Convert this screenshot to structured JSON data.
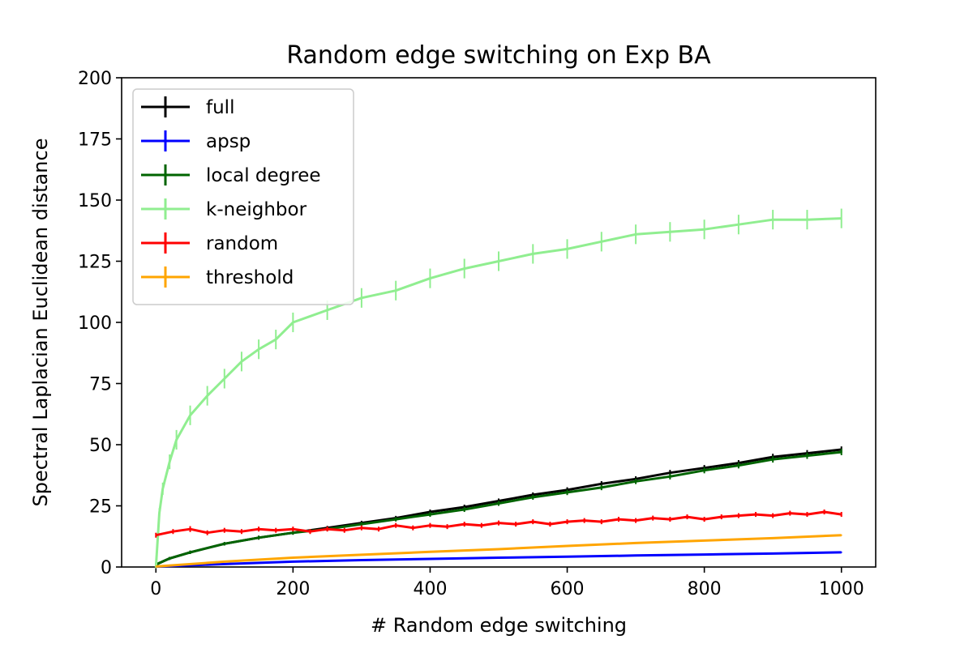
{
  "chart_data": {
    "type": "line",
    "title": "Random edge switching on Exp BA",
    "xlabel": "# Random edge switching",
    "ylabel": "Spectral Laplacian Euclidean distance",
    "xlim": [
      -50,
      1050
    ],
    "ylim": [
      0,
      200
    ],
    "xticks": [
      0,
      200,
      400,
      600,
      800,
      1000
    ],
    "yticks": [
      0,
      25,
      50,
      75,
      100,
      125,
      150,
      175,
      200
    ],
    "legend_position": "upper-left",
    "grid": false,
    "series": [
      {
        "name": "full",
        "color": "#000000",
        "x": [
          0,
          20,
          50,
          100,
          150,
          200,
          250,
          300,
          350,
          400,
          450,
          500,
          550,
          600,
          650,
          700,
          750,
          800,
          850,
          900,
          950,
          1000
        ],
        "y": [
          1,
          3.5,
          6,
          9.5,
          12,
          14,
          16,
          18,
          20,
          22.5,
          24.5,
          27,
          29.5,
          31.5,
          34,
          36,
          38.5,
          40.5,
          42.5,
          45,
          46.5,
          48
        ],
        "error": [
          0.6,
          0.6,
          0.7,
          0.7,
          0.8,
          0.8,
          0.8,
          0.9,
          0.9,
          1,
          1,
          1,
          1,
          1.1,
          1.1,
          1.1,
          1.2,
          1.2,
          1.2,
          1.3,
          1.3,
          1.3
        ]
      },
      {
        "name": "apsp",
        "color": "#0000ff",
        "x": [
          0,
          100,
          200,
          300,
          400,
          500,
          600,
          700,
          800,
          900,
          1000
        ],
        "y": [
          0.2,
          1.2,
          2.2,
          2.8,
          3.3,
          3.8,
          4.2,
          4.7,
          5.1,
          5.5,
          6
        ],
        "error": [
          0.1,
          0.2,
          0.2,
          0.2,
          0.2,
          0.2,
          0.2,
          0.2,
          0.2,
          0.2,
          0.2
        ]
      },
      {
        "name": "local degree",
        "color": "#006400",
        "x": [
          0,
          20,
          50,
          100,
          150,
          200,
          250,
          300,
          350,
          400,
          450,
          500,
          550,
          600,
          650,
          700,
          750,
          800,
          850,
          900,
          950,
          1000
        ],
        "y": [
          1,
          3.5,
          6,
          9.5,
          12,
          14,
          15.5,
          17.5,
          19.5,
          21.5,
          23.5,
          26,
          28.5,
          30.5,
          32.5,
          35,
          37,
          39.5,
          41.5,
          44,
          45.5,
          47
        ],
        "error": [
          0.6,
          0.6,
          0.7,
          0.7,
          0.8,
          0.8,
          0.8,
          0.9,
          0.9,
          1,
          1,
          1,
          1,
          1.1,
          1.1,
          1.1,
          1.2,
          1.2,
          1.2,
          1.3,
          1.3,
          1.3
        ]
      },
      {
        "name": "k-neighbor",
        "color": "#90ee90",
        "x": [
          0,
          5,
          10,
          20,
          30,
          50,
          75,
          100,
          125,
          150,
          175,
          200,
          250,
          300,
          350,
          400,
          450,
          500,
          550,
          600,
          650,
          700,
          750,
          800,
          850,
          900,
          950,
          1000
        ],
        "y": [
          0,
          22,
          32,
          43,
          52,
          62,
          70,
          77,
          84,
          89,
          93,
          100,
          105,
          110,
          113,
          118,
          122,
          125,
          128,
          130,
          133,
          136,
          137,
          138,
          140,
          142,
          142,
          142.5
        ],
        "error": [
          0.5,
          2,
          2.5,
          3,
          4,
          4,
          4,
          4,
          4,
          4,
          4,
          4,
          4,
          4,
          4,
          4,
          4,
          4,
          4,
          4,
          4,
          4,
          4,
          4,
          4,
          4,
          4,
          4
        ]
      },
      {
        "name": "random",
        "color": "#ff0000",
        "x": [
          0,
          25,
          50,
          75,
          100,
          125,
          150,
          175,
          200,
          225,
          250,
          275,
          300,
          325,
          350,
          375,
          400,
          425,
          450,
          475,
          500,
          525,
          550,
          575,
          600,
          625,
          650,
          675,
          700,
          725,
          750,
          775,
          800,
          825,
          850,
          875,
          900,
          925,
          950,
          975,
          1000
        ],
        "y": [
          13,
          14.5,
          15.5,
          14,
          15,
          14.5,
          15.5,
          15,
          15.5,
          14.5,
          15.5,
          15,
          16,
          15.5,
          17,
          16,
          17,
          16.5,
          17.5,
          17,
          18,
          17.5,
          18.5,
          17.5,
          18.5,
          19,
          18.5,
          19.5,
          19,
          20,
          19.5,
          20.5,
          19.5,
          20.5,
          21,
          21.5,
          21,
          22,
          21.5,
          22.5,
          21.5
        ],
        "error": [
          1,
          1,
          1.2,
          1,
          1,
          1,
          1,
          1,
          1,
          1,
          1,
          1,
          1,
          1,
          1,
          1,
          1,
          1,
          1,
          1,
          1,
          1,
          1,
          1,
          1,
          1,
          1,
          1,
          1,
          1,
          1,
          1,
          1,
          1,
          1,
          1,
          1,
          1,
          1,
          1,
          1
        ]
      },
      {
        "name": "threshold",
        "color": "#ffa500",
        "x": [
          0,
          100,
          200,
          300,
          400,
          500,
          600,
          700,
          800,
          900,
          1000
        ],
        "y": [
          0.2,
          2.2,
          3.8,
          5,
          6.2,
          7.3,
          8.6,
          9.8,
          10.8,
          11.8,
          13
        ],
        "error": [
          0.1,
          0.2,
          0.2,
          0.2,
          0.2,
          0.2,
          0.2,
          0.2,
          0.2,
          0.2,
          0.2
        ]
      }
    ]
  }
}
